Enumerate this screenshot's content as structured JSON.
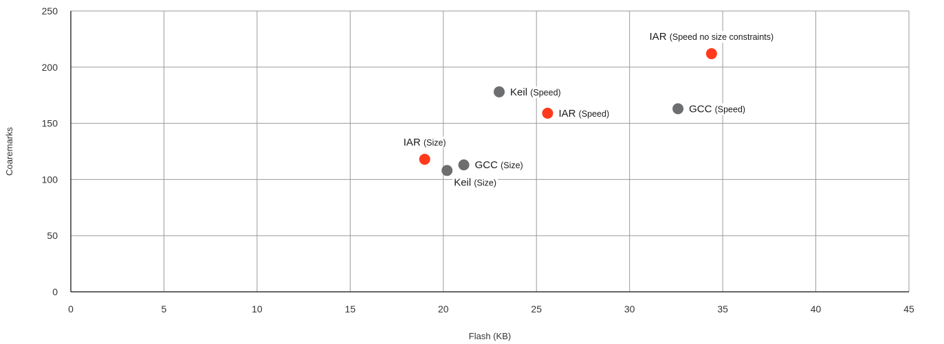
{
  "chart_data": {
    "type": "scatter",
    "xlabel": "Flash (KB)",
    "ylabel": "Coaremarks",
    "xlim": [
      0,
      45
    ],
    "ylim": [
      0,
      250
    ],
    "xticks": [
      0,
      5,
      10,
      15,
      20,
      25,
      30,
      35,
      40,
      45
    ],
    "yticks": [
      0,
      50,
      100,
      150,
      200,
      250
    ],
    "grid": true,
    "colors": {
      "IAR": "#ff3a1c",
      "other": "#6d6e70"
    },
    "points": [
      {
        "name": "IAR",
        "sub": "(Size)",
        "x": 19.0,
        "y": 118,
        "group": "IAR",
        "label_pos": "above"
      },
      {
        "name": "Keil",
        "sub": "(Size)",
        "x": 20.2,
        "y": 108,
        "group": "other",
        "label_pos": "below-right"
      },
      {
        "name": "GCC",
        "sub": "(Size)",
        "x": 21.1,
        "y": 113,
        "group": "other",
        "label_pos": "right"
      },
      {
        "name": "Keil",
        "sub": "(Speed)",
        "x": 23.0,
        "y": 178,
        "group": "other",
        "label_pos": "right"
      },
      {
        "name": "IAR",
        "sub": "(Speed)",
        "x": 25.6,
        "y": 159,
        "group": "IAR",
        "label_pos": "right"
      },
      {
        "name": "GCC",
        "sub": "(Speed)",
        "x": 32.6,
        "y": 163,
        "group": "other",
        "label_pos": "right"
      },
      {
        "name": "IAR",
        "sub": "(Speed no size constraints)",
        "x": 34.4,
        "y": 212,
        "group": "IAR",
        "label_pos": "above"
      }
    ]
  }
}
